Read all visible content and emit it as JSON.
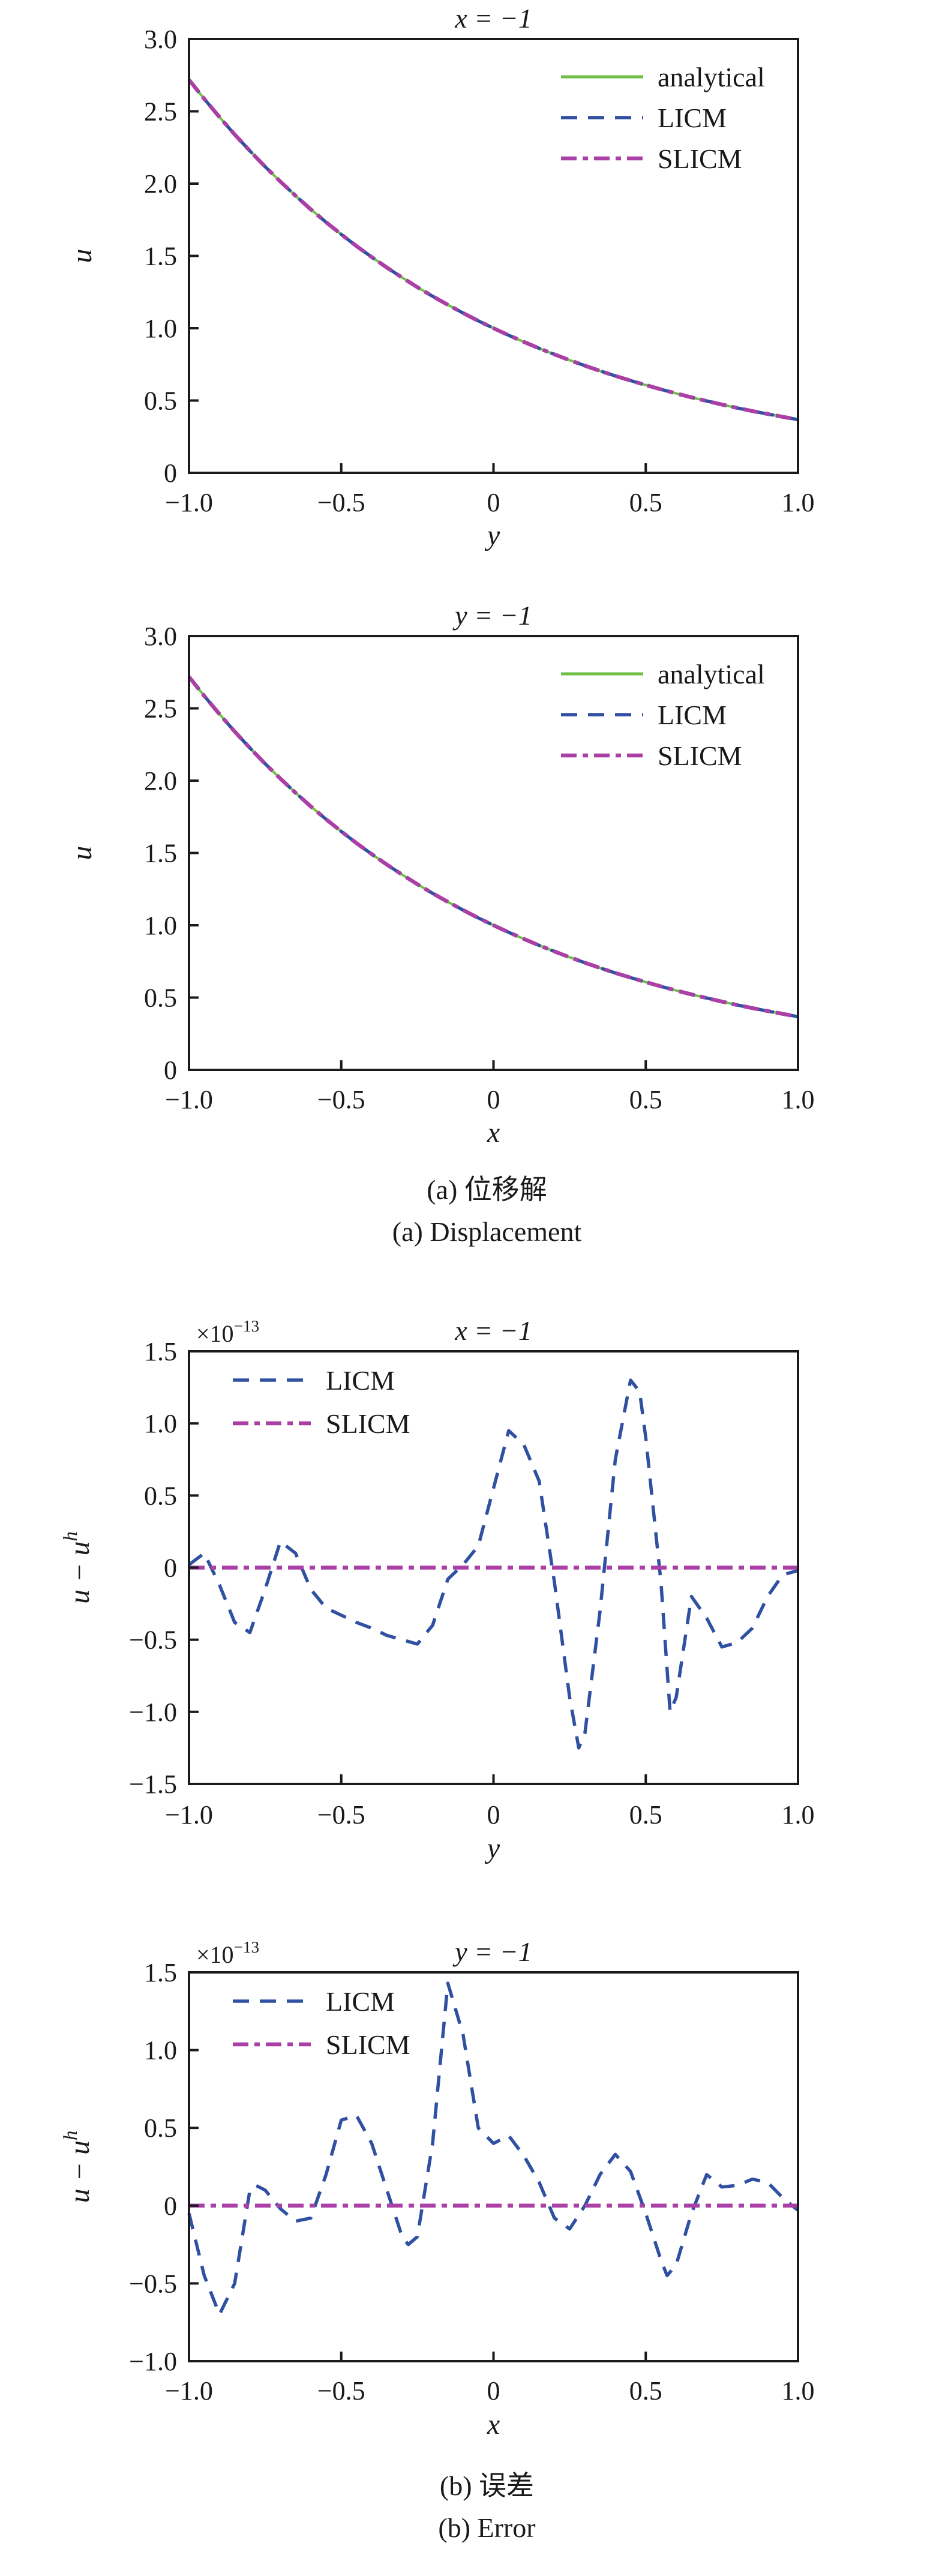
{
  "page": {
    "background": "#ffffff"
  },
  "colors": {
    "analytical": "#6FBF44",
    "licm": "#3051A2",
    "slicm": "#AA3FA6",
    "axis": "#1a1a1a"
  },
  "captions": {
    "a": {
      "zh": "(a) 位移解",
      "en": "(a) Displacement"
    },
    "b": {
      "zh": "(b) 误差",
      "en": "(b) Error"
    }
  },
  "chart_data": [
    {
      "name": "displacement-x-minus-1",
      "type": "line",
      "title": "x = −1",
      "xlabel": "y",
      "ylabel": "u",
      "xlim": [
        -1,
        1
      ],
      "ylim": [
        0,
        3
      ],
      "xticks": {
        "labels": [
          "−1.0",
          "−0.5",
          "0",
          "0.5",
          "1.0"
        ],
        "values": [
          -1,
          -0.5,
          0,
          0.5,
          1
        ]
      },
      "yticks": {
        "labels": [
          "3.0",
          "2.5",
          "2.0",
          "1.5",
          "1.0",
          "0.5",
          "0"
        ],
        "values": [
          3,
          2.5,
          2,
          1.5,
          1,
          0.5,
          0
        ]
      },
      "legend_position": "upper right",
      "series": [
        {
          "name": "analytical",
          "label": "analytical",
          "color_key": "analytical",
          "dash": "solid",
          "x": [
            -1,
            -0.95,
            -0.9,
            -0.85,
            -0.8,
            -0.75,
            -0.7,
            -0.65,
            -0.6,
            -0.55,
            -0.5,
            -0.45,
            -0.4,
            -0.35,
            -0.3,
            -0.25,
            -0.2,
            -0.15,
            -0.1,
            -0.05,
            0,
            0.05,
            0.1,
            0.15,
            0.2,
            0.25,
            0.3,
            0.35,
            0.4,
            0.45,
            0.5,
            0.55,
            0.6,
            0.65,
            0.7,
            0.75,
            0.8,
            0.85,
            0.9,
            0.95,
            1
          ],
          "y": [
            2.718,
            2.586,
            2.46,
            2.34,
            2.226,
            2.117,
            2.014,
            1.916,
            1.822,
            1.733,
            1.649,
            1.568,
            1.492,
            1.419,
            1.35,
            1.284,
            1.221,
            1.162,
            1.105,
            1.051,
            1,
            0.951,
            0.905,
            0.861,
            0.819,
            0.779,
            0.741,
            0.705,
            0.67,
            0.638,
            0.607,
            0.577,
            0.549,
            0.522,
            0.497,
            0.472,
            0.449,
            0.427,
            0.407,
            0.387,
            0.368
          ]
        },
        {
          "name": "LICM",
          "label": "LICM",
          "color_key": "licm",
          "dash": "dashed",
          "same_as": 0
        },
        {
          "name": "SLICM",
          "label": "SLICM",
          "color_key": "slicm",
          "dash": "dashdot",
          "same_as": 0
        }
      ]
    },
    {
      "name": "displacement-y-minus-1",
      "type": "line",
      "title": "y = −1",
      "xlabel": "x",
      "ylabel": "u",
      "xlim": [
        -1,
        1
      ],
      "ylim": [
        0,
        3
      ],
      "xticks": {
        "labels": [
          "−1.0",
          "−0.5",
          "0",
          "0.5",
          "1.0"
        ],
        "values": [
          -1,
          -0.5,
          0,
          0.5,
          1
        ]
      },
      "yticks": {
        "labels": [
          "3.0",
          "2.5",
          "2.0",
          "1.5",
          "1.0",
          "0.5",
          "0"
        ],
        "values": [
          3,
          2.5,
          2,
          1.5,
          1,
          0.5,
          0
        ]
      },
      "legend_position": "upper right",
      "series": [
        {
          "name": "analytical",
          "label": "analytical",
          "color_key": "analytical",
          "dash": "solid",
          "x": [
            -1,
            -0.95,
            -0.9,
            -0.85,
            -0.8,
            -0.75,
            -0.7,
            -0.65,
            -0.6,
            -0.55,
            -0.5,
            -0.45,
            -0.4,
            -0.35,
            -0.3,
            -0.25,
            -0.2,
            -0.15,
            -0.1,
            -0.05,
            0,
            0.05,
            0.1,
            0.15,
            0.2,
            0.25,
            0.3,
            0.35,
            0.4,
            0.45,
            0.5,
            0.55,
            0.6,
            0.65,
            0.7,
            0.75,
            0.8,
            0.85,
            0.9,
            0.95,
            1
          ],
          "y": [
            2.718,
            2.586,
            2.46,
            2.34,
            2.226,
            2.117,
            2.014,
            1.916,
            1.822,
            1.733,
            1.649,
            1.568,
            1.492,
            1.419,
            1.35,
            1.284,
            1.221,
            1.162,
            1.105,
            1.051,
            1,
            0.951,
            0.905,
            0.861,
            0.819,
            0.779,
            0.741,
            0.705,
            0.67,
            0.638,
            0.607,
            0.577,
            0.549,
            0.522,
            0.497,
            0.472,
            0.449,
            0.427,
            0.407,
            0.387,
            0.368
          ]
        },
        {
          "name": "LICM",
          "label": "LICM",
          "color_key": "licm",
          "dash": "dashed",
          "same_as": 0
        },
        {
          "name": "SLICM",
          "label": "SLICM",
          "color_key": "slicm",
          "dash": "dashdot",
          "same_as": 0
        }
      ]
    },
    {
      "name": "error-x-minus-1",
      "type": "line",
      "title": "x = −1",
      "xlabel": "y",
      "ylabel": "u − u^h",
      "offset_label": "×10^−13",
      "xlim": [
        -1,
        1
      ],
      "ylim": [
        -1.5,
        1.5
      ],
      "xticks": {
        "labels": [
          "−1.0",
          "−0.5",
          "0",
          "0.5",
          "1.0"
        ],
        "values": [
          -1,
          -0.5,
          0,
          0.5,
          1
        ]
      },
      "yticks": {
        "labels": [
          "1.5",
          "1.0",
          "0.5",
          "0",
          "−0.5",
          "−1.0",
          "−1.5"
        ],
        "values": [
          1.5,
          1,
          0.5,
          0,
          -0.5,
          -1,
          -1.5
        ]
      },
      "legend_position": "upper left",
      "series": [
        {
          "name": "LICM",
          "label": "LICM",
          "color_key": "licm",
          "dash": "dashed",
          "x": [
            -1,
            -0.95,
            -0.9,
            -0.85,
            -0.8,
            -0.75,
            -0.7,
            -0.65,
            -0.6,
            -0.55,
            -0.5,
            -0.45,
            -0.4,
            -0.35,
            -0.3,
            -0.25,
            -0.2,
            -0.15,
            -0.1,
            -0.05,
            0,
            0.05,
            0.1,
            0.15,
            0.2,
            0.25,
            0.28,
            0.3,
            0.35,
            0.4,
            0.45,
            0.48,
            0.5,
            0.55,
            0.58,
            0.6,
            0.65,
            0.7,
            0.75,
            0.8,
            0.85,
            0.9,
            0.95,
            1
          ],
          "y": [
            0.02,
            0.1,
            -0.12,
            -0.38,
            -0.45,
            -0.15,
            0.18,
            0.1,
            -0.15,
            -0.28,
            -0.33,
            -0.38,
            -0.42,
            -0.47,
            -0.5,
            -0.53,
            -0.4,
            -0.08,
            0.02,
            0.15,
            0.55,
            0.95,
            0.85,
            0.6,
            -0.1,
            -0.9,
            -1.25,
            -1.15,
            -0.3,
            0.75,
            1.3,
            1.22,
            0.9,
            -0.1,
            -1,
            -0.9,
            -0.2,
            -0.35,
            -0.55,
            -0.52,
            -0.42,
            -0.2,
            -0.05,
            -0.02
          ]
        },
        {
          "name": "SLICM",
          "label": "SLICM",
          "color_key": "slicm",
          "dash": "dashdot",
          "x": [
            -1,
            1
          ],
          "y": [
            0,
            0
          ]
        }
      ]
    },
    {
      "name": "error-y-minus-1",
      "type": "line",
      "title": "y = −1",
      "xlabel": "x",
      "ylabel": "u − u^h",
      "offset_label": "×10^−13",
      "xlim": [
        -1,
        1
      ],
      "ylim": [
        -1,
        1.5
      ],
      "xticks": {
        "labels": [
          "−1.0",
          "−0.5",
          "0",
          "0.5",
          "1.0"
        ],
        "values": [
          -1,
          -0.5,
          0,
          0.5,
          1
        ]
      },
      "yticks": {
        "labels": [
          "1.5",
          "1.0",
          "0.5",
          "0",
          "−0.5",
          "−1.0"
        ],
        "values": [
          1.5,
          1,
          0.5,
          0,
          -0.5,
          -1
        ]
      },
      "legend_position": "upper left",
      "series": [
        {
          "name": "LICM",
          "label": "LICM",
          "color_key": "licm",
          "dash": "dashed",
          "x": [
            -1,
            -0.95,
            -0.9,
            -0.85,
            -0.8,
            -0.78,
            -0.75,
            -0.7,
            -0.65,
            -0.6,
            -0.55,
            -0.5,
            -0.45,
            -0.4,
            -0.35,
            -0.3,
            -0.28,
            -0.25,
            -0.2,
            -0.15,
            -0.1,
            -0.05,
            0,
            0.05,
            0.1,
            0.15,
            0.2,
            0.25,
            0.3,
            0.35,
            0.4,
            0.45,
            0.5,
            0.55,
            0.57,
            0.6,
            0.65,
            0.7,
            0.75,
            0.8,
            0.85,
            0.9,
            0.95,
            1
          ],
          "y": [
            -0.05,
            -0.45,
            -0.7,
            -0.5,
            0.1,
            0.13,
            0.1,
            -0.02,
            -0.1,
            -0.08,
            0.2,
            0.55,
            0.58,
            0.4,
            0.1,
            -0.2,
            -0.25,
            -0.2,
            0.4,
            1.43,
            1.1,
            0.5,
            0.4,
            0.45,
            0.32,
            0.15,
            -0.08,
            -0.15,
            0,
            0.2,
            0.33,
            0.22,
            -0.05,
            -0.35,
            -0.45,
            -0.38,
            -0.05,
            0.2,
            0.12,
            0.13,
            0.17,
            0.15,
            0.05,
            -0.03
          ]
        },
        {
          "name": "SLICM",
          "label": "SLICM",
          "color_key": "slicm",
          "dash": "dashdot",
          "x": [
            -1,
            1
          ],
          "y": [
            0,
            0
          ]
        }
      ]
    }
  ]
}
